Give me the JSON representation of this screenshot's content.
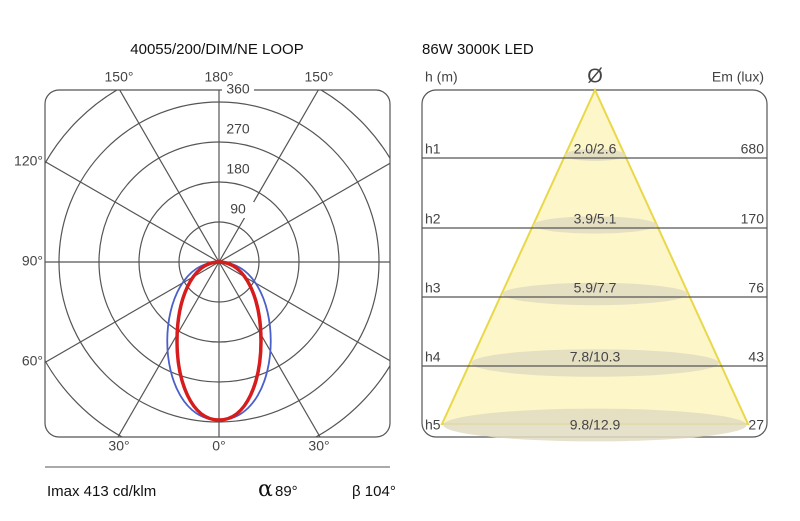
{
  "polar": {
    "title": "40055/200/DIM/NE  LOOP",
    "top_angles": [
      "150°",
      "180°",
      "150°"
    ],
    "side_angles": [
      "120°",
      "90°",
      "60°"
    ],
    "bottom_angles": [
      "30°",
      "0°",
      "30°"
    ],
    "rings": [
      "90",
      "180",
      "270",
      "360"
    ]
  },
  "footer": {
    "imax": "Imax 413 cd/klm",
    "alpha_symbol": "α",
    "alpha": "89°",
    "beta": "β 104°"
  },
  "cone": {
    "title": "86W  3000K  LED",
    "h_header": "h (m)",
    "diam_header": "Ø",
    "lux_header": "Em (lux)",
    "rows": [
      {
        "h": "h1",
        "diameter": "2.0/2.6",
        "lux": "680"
      },
      {
        "h": "h2",
        "diameter": "3.9/5.1",
        "lux": "170"
      },
      {
        "h": "h3",
        "diameter": "5.9/7.7",
        "lux": "76"
      },
      {
        "h": "h4",
        "diameter": "7.8/10.3",
        "lux": "43"
      },
      {
        "h": "h5",
        "diameter": "9.8/12.9",
        "lux": "27"
      }
    ]
  }
}
